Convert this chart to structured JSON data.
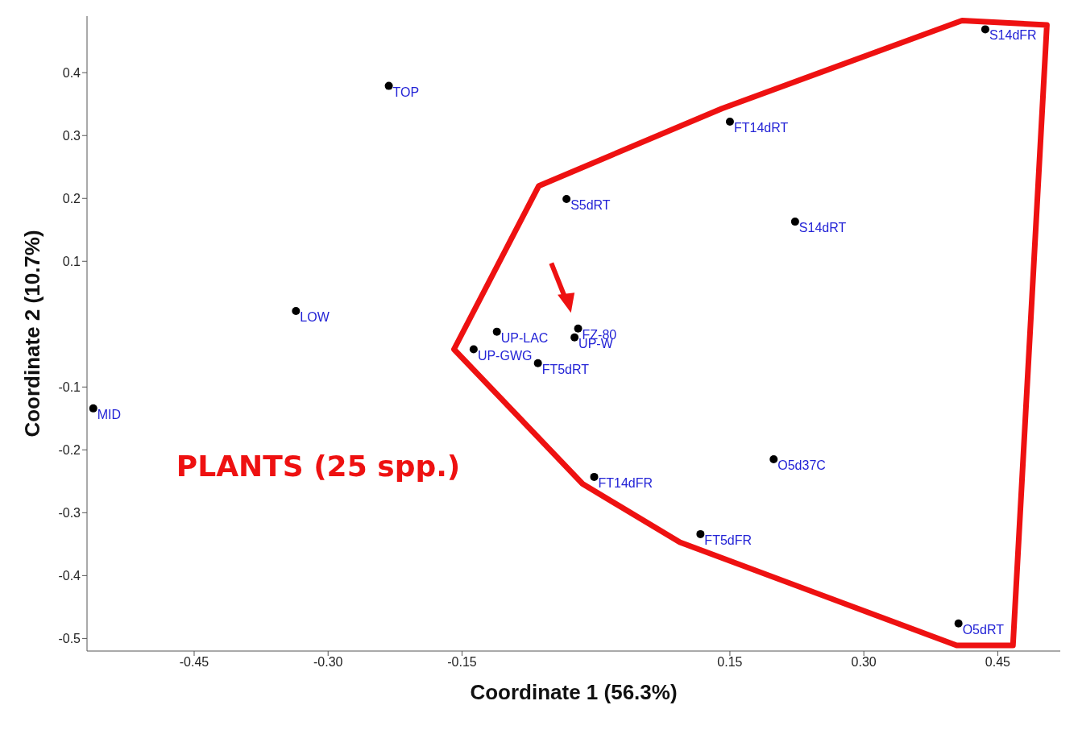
{
  "chart_data": {
    "type": "scatter",
    "xlabel": "Coordinate 1 (56.3%)",
    "ylabel": "Coordinate 2 (10.7%)",
    "annotations": [
      "PLANTS (25 spp.)"
    ],
    "xlim": [
      -0.57,
      0.52
    ],
    "ylim": [
      -0.52,
      0.49
    ],
    "xticks": [
      {
        "value": -0.45,
        "label": "-0.45"
      },
      {
        "value": -0.3,
        "label": "-0.30"
      },
      {
        "value": -0.15,
        "label": "-0.15"
      },
      {
        "value": 0.15,
        "label": "0.15"
      },
      {
        "value": 0.3,
        "label": "0.30"
      },
      {
        "value": 0.45,
        "label": "0.45"
      }
    ],
    "yticks": [
      -0.5,
      -0.4,
      -0.3,
      -0.2,
      -0.1,
      0.1,
      0.2,
      0.3,
      0.4
    ],
    "grid": false,
    "legend": false,
    "marker": "circle",
    "series": [
      {
        "name": "MID",
        "color": "#000000",
        "x": [
          -0.563
        ],
        "values": [
          -0.134
        ]
      },
      {
        "name": "LOW",
        "color": "#000000",
        "x": [
          -0.336
        ],
        "values": [
          0.021
        ]
      },
      {
        "name": "TOP",
        "color": "#000000",
        "x": [
          -0.232
        ],
        "values": [
          0.379
        ]
      },
      {
        "name": "UP-LAC",
        "color": "#000000",
        "x": [
          -0.111
        ],
        "values": [
          -0.012
        ]
      },
      {
        "name": "UP-GWG",
        "color": "#000000",
        "x": [
          -0.137
        ],
        "values": [
          -0.04
        ]
      },
      {
        "name": "FT5dRT",
        "color": "#000000",
        "x": [
          -0.065
        ],
        "values": [
          -0.062
        ]
      },
      {
        "name": "S5dRT",
        "color": "#000000",
        "x": [
          -0.033
        ],
        "values": [
          0.199
        ]
      },
      {
        "name": "FZ-80",
        "color": "#000000",
        "x": [
          -0.02
        ],
        "values": [
          -0.007
        ]
      },
      {
        "name": "UP-W",
        "color": "#000000",
        "x": [
          -0.024
        ],
        "values": [
          -0.021
        ]
      },
      {
        "name": "FT14dFR",
        "color": "#000000",
        "x": [
          -0.002
        ],
        "values": [
          -0.243
        ]
      },
      {
        "name": "FT14dRT",
        "color": "#000000",
        "x": [
          0.15
        ],
        "values": [
          0.322
        ]
      },
      {
        "name": "S14dRT",
        "color": "#000000",
        "x": [
          0.223
        ],
        "values": [
          0.163
        ]
      },
      {
        "name": "O5d37C",
        "color": "#000000",
        "x": [
          0.199
        ],
        "values": [
          -0.215
        ]
      },
      {
        "name": "FT5dFR",
        "color": "#000000",
        "x": [
          0.117
        ],
        "values": [
          -0.334
        ]
      },
      {
        "name": "S14dFR",
        "color": "#000000",
        "x": [
          0.436
        ],
        "values": [
          0.469
        ]
      },
      {
        "name": "O5dRT",
        "color": "#000000",
        "x": [
          0.406
        ],
        "values": [
          -0.476
        ]
      }
    ]
  }
}
